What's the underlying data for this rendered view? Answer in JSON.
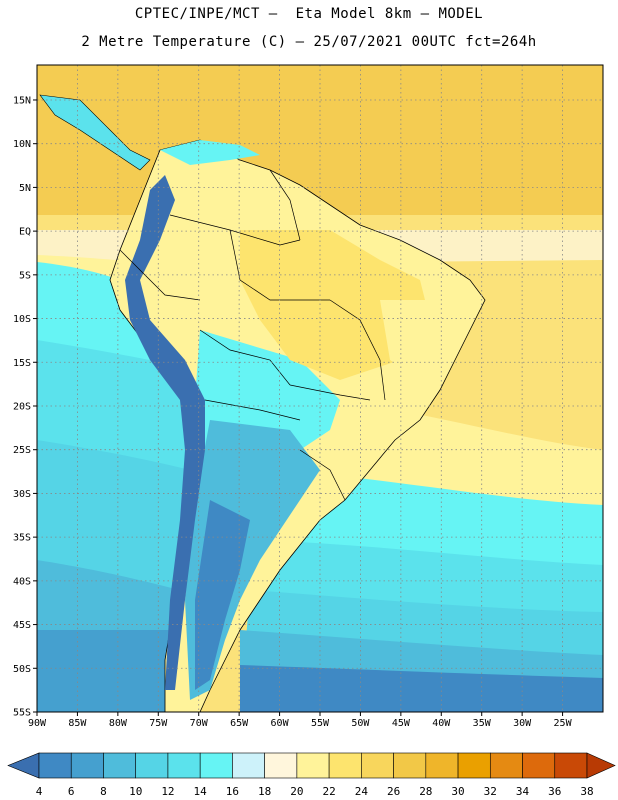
{
  "header": {
    "line1": "CPTEC/INPE/MCT –  Eta Model 8km – MODEL",
    "line2": "2 Metre Temperature (C) – 25/07/2021 00UTC fct=264h"
  },
  "map": {
    "lon_range": [
      -90,
      -20
    ],
    "lat_range": [
      -55,
      19
    ],
    "lon_ticks": [
      {
        "value": -90,
        "label": "90W"
      },
      {
        "value": -85,
        "label": "85W"
      },
      {
        "value": -80,
        "label": "80W"
      },
      {
        "value": -75,
        "label": "75W"
      },
      {
        "value": -70,
        "label": "70W"
      },
      {
        "value": -65,
        "label": "65W"
      },
      {
        "value": -60,
        "label": "60W"
      },
      {
        "value": -55,
        "label": "55W"
      },
      {
        "value": -50,
        "label": "50W"
      },
      {
        "value": -45,
        "label": "45W"
      },
      {
        "value": -40,
        "label": "40W"
      },
      {
        "value": -35,
        "label": "35W"
      },
      {
        "value": -30,
        "label": "30W"
      },
      {
        "value": -25,
        "label": "25W"
      }
    ],
    "lat_ticks": [
      {
        "value": 15,
        "label": "15N"
      },
      {
        "value": 10,
        "label": "10N"
      },
      {
        "value": 5,
        "label": "5N"
      },
      {
        "value": 0,
        "label": "EQ"
      },
      {
        "value": -5,
        "label": "5S"
      },
      {
        "value": -10,
        "label": "10S"
      },
      {
        "value": -15,
        "label": "15S"
      },
      {
        "value": -20,
        "label": "20S"
      },
      {
        "value": -25,
        "label": "25S"
      },
      {
        "value": -30,
        "label": "30S"
      },
      {
        "value": -35,
        "label": "35S"
      },
      {
        "value": -40,
        "label": "40S"
      },
      {
        "value": -45,
        "label": "45S"
      },
      {
        "value": -50,
        "label": "50S"
      },
      {
        "value": -55,
        "label": "55S"
      }
    ],
    "grid": true,
    "grid_style": "dotted"
  },
  "colorbar": {
    "labels": [
      "4",
      "6",
      "8",
      "10",
      "12",
      "14",
      "16",
      "18",
      "20",
      "22",
      "24",
      "26",
      "28",
      "30",
      "32",
      "34",
      "36",
      "38"
    ],
    "colors": [
      "#3a6fb0",
      "#3f89c4",
      "#45a0cf",
      "#4fbcdb",
      "#55d4e6",
      "#5be2ec",
      "#66f4f4",
      "#cdf2fa",
      "#fff6dc",
      "#fff39a",
      "#fde46e",
      "#f8d65c",
      "#f2c847",
      "#efb52a",
      "#eaa000",
      "#e58a12",
      "#dd6a0c",
      "#c94906",
      "#b83a04"
    ]
  },
  "chart_data": {
    "type": "heatmap",
    "title": "2 Metre Temperature (C) – 25/07/2021 00UTC fct=264h",
    "region": "South America",
    "units": "C",
    "scale_values": [
      4,
      6,
      8,
      10,
      12,
      14,
      16,
      18,
      20,
      22,
      24,
      26,
      28,
      30,
      32,
      34,
      36,
      38
    ],
    "x_axis": "longitude",
    "y_axis": "latitude"
  }
}
